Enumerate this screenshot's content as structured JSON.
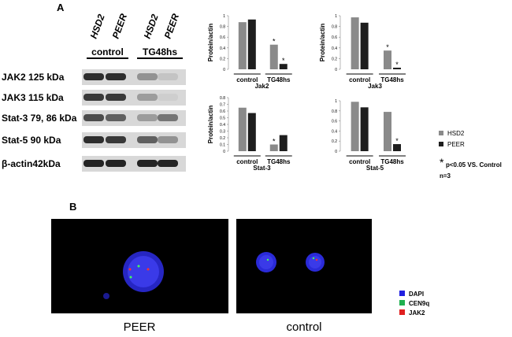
{
  "panels": {
    "a": "A",
    "b": "B"
  },
  "blot": {
    "columns": [
      "HSD2",
      "PEER",
      "HSD2",
      "PEER"
    ],
    "groups": [
      "control",
      "TG48hs"
    ],
    "rows": [
      "JAK2  125 kDa",
      "JAK3  115 kDa",
      "Stat-3  79, 86 kDa",
      "Stat-5  90 kDa",
      "β-actin42kDa"
    ]
  },
  "chart_data": [
    {
      "type": "bar",
      "xlabel": "Jak2",
      "ylabel": "Protein/actin",
      "categories": [
        "control",
        "TG48hs"
      ],
      "series": [
        {
          "color": "#8a8a8a",
          "values": [
            0.88,
            0.46
          ],
          "markers": [
            null,
            "*"
          ]
        },
        {
          "color": "#1e1e1e",
          "values": [
            0.93,
            0.1
          ],
          "markers": [
            null,
            "*"
          ]
        }
      ],
      "ylim": [
        0,
        1
      ],
      "yticks": [
        0,
        0.2,
        0.4,
        0.6,
        0.8,
        1
      ]
    },
    {
      "type": "bar",
      "xlabel": "Jak3",
      "ylabel": "Protein/actin",
      "categories": [
        "control",
        "TG48hs"
      ],
      "series": [
        {
          "color": "#8a8a8a",
          "values": [
            0.97,
            0.35
          ],
          "markers": [
            null,
            "*"
          ]
        },
        {
          "color": "#1e1e1e",
          "values": [
            0.87,
            0.03
          ],
          "markers": [
            null,
            "*"
          ]
        }
      ],
      "ylim": [
        0,
        1
      ],
      "yticks": [
        0,
        0.2,
        0.4,
        0.6,
        0.8,
        1
      ]
    },
    {
      "type": "bar",
      "xlabel": "Stat-3",
      "ylabel": "Protein/actin",
      "categories": [
        "control",
        "TG48hs"
      ],
      "series": [
        {
          "color": "#8a8a8a",
          "values": [
            0.65,
            0.1
          ],
          "markers": [
            null,
            "*"
          ]
        },
        {
          "color": "#1e1e1e",
          "values": [
            0.57,
            0.24
          ],
          "markers": [
            null,
            null
          ]
        }
      ],
      "ylim": [
        0,
        0.8
      ],
      "yticks": [
        0,
        0.1,
        0.2,
        0.3,
        0.4,
        0.5,
        0.6,
        0.7,
        0.8
      ]
    },
    {
      "type": "bar",
      "xlabel": "Stat-5",
      "categories": [
        "control",
        "TG48hs"
      ],
      "series": [
        {
          "color": "#8a8a8a",
          "values": [
            0.98,
            0.78
          ],
          "markers": [
            null,
            null
          ]
        },
        {
          "color": "#1e1e1e",
          "values": [
            0.87,
            0.14
          ],
          "markers": [
            null,
            "*"
          ]
        }
      ],
      "ylim": [
        0,
        1
      ],
      "yticks": [
        0,
        0.2,
        0.4,
        0.6,
        0.8,
        1
      ]
    }
  ],
  "legend": [
    {
      "name": "HSD2",
      "color": "#8a8a8a"
    },
    {
      "name": "PEER",
      "color": "#1e1e1e"
    }
  ],
  "note": {
    "symbol": "*",
    "text": "p<0.05 VS. Control",
    "n": "n=3"
  },
  "images": {
    "labels": [
      "PEER",
      "control"
    ],
    "legend": [
      {
        "name": "DAPI",
        "color": "#2020e0"
      },
      {
        "name": "CEN9q",
        "color": "#20b050"
      },
      {
        "name": "JAK2",
        "color": "#e02020"
      }
    ]
  }
}
